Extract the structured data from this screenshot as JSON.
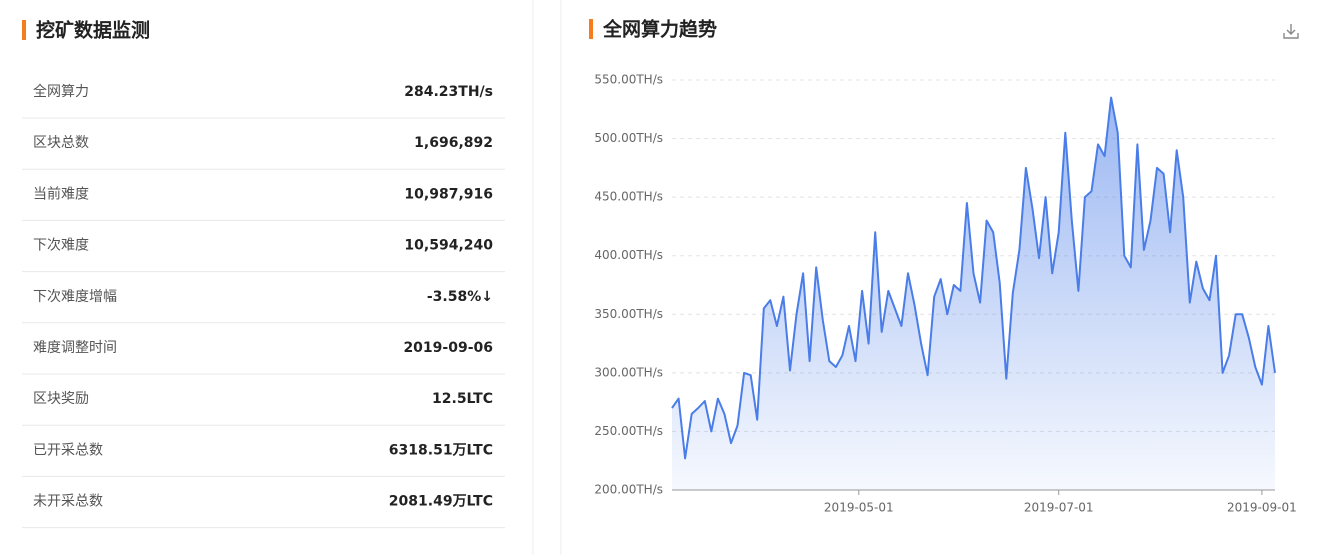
{
  "stats": {
    "title": "挖矿数据监测",
    "rows": [
      [
        "全网算力",
        "284.23TH/s"
      ],
      [
        "区块总数",
        "1,696,892"
      ],
      [
        "当前难度",
        "10,987,916"
      ],
      [
        "下次难度",
        "10,594,240"
      ],
      [
        "下次难度增幅",
        "-3.58%↓"
      ],
      [
        "难度调整时间",
        "2019-09-06"
      ],
      [
        "区块奖励",
        "12.5LTC"
      ],
      [
        "已开采总数",
        "6318.51万LTC"
      ],
      [
        "未开采总数",
        "2081.49万LTC"
      ]
    ]
  },
  "chart_data": {
    "type": "area",
    "title": "全网算力趋势",
    "x": [
      "2019-03-05",
      "2019-03-07",
      "2019-03-09",
      "2019-03-11",
      "2019-03-13",
      "2019-03-15",
      "2019-03-17",
      "2019-03-19",
      "2019-03-21",
      "2019-03-23",
      "2019-03-25",
      "2019-03-27",
      "2019-03-29",
      "2019-03-31",
      "2019-04-02",
      "2019-04-04",
      "2019-04-06",
      "2019-04-08",
      "2019-04-10",
      "2019-04-12",
      "2019-04-14",
      "2019-04-16",
      "2019-04-18",
      "2019-04-20",
      "2019-04-22",
      "2019-04-24",
      "2019-04-26",
      "2019-04-28",
      "2019-04-30",
      "2019-05-02",
      "2019-05-04",
      "2019-05-06",
      "2019-05-08",
      "2019-05-10",
      "2019-05-12",
      "2019-05-14",
      "2019-05-16",
      "2019-05-18",
      "2019-05-20",
      "2019-05-22",
      "2019-05-24",
      "2019-05-26",
      "2019-05-28",
      "2019-05-30",
      "2019-06-01",
      "2019-06-03",
      "2019-06-05",
      "2019-06-07",
      "2019-06-09",
      "2019-06-11",
      "2019-06-13",
      "2019-06-15",
      "2019-06-17",
      "2019-06-19",
      "2019-06-21",
      "2019-06-23",
      "2019-06-25",
      "2019-06-27",
      "2019-06-29",
      "2019-07-01",
      "2019-07-03",
      "2019-07-05",
      "2019-07-07",
      "2019-07-09",
      "2019-07-11",
      "2019-07-13",
      "2019-07-15",
      "2019-07-17",
      "2019-07-19",
      "2019-07-21",
      "2019-07-23",
      "2019-07-25",
      "2019-07-27",
      "2019-07-29",
      "2019-07-31",
      "2019-08-02",
      "2019-08-04",
      "2019-08-06",
      "2019-08-08",
      "2019-08-10",
      "2019-08-12",
      "2019-08-14",
      "2019-08-16",
      "2019-08-18",
      "2019-08-20",
      "2019-08-22",
      "2019-08-24",
      "2019-08-26",
      "2019-08-28",
      "2019-08-30",
      "2019-09-01",
      "2019-09-03",
      "2019-09-05"
    ],
    "series": [
      {
        "color": "#4a7de8",
        "values": [
          270,
          278,
          227,
          265,
          270,
          276,
          250,
          278,
          265,
          240,
          255,
          300,
          298,
          260,
          355,
          362,
          340,
          365,
          302,
          350,
          385,
          310,
          390,
          345,
          310,
          305,
          315,
          340,
          310,
          370,
          325,
          420,
          335,
          370,
          355,
          340,
          385,
          358,
          325,
          298,
          365,
          380,
          350,
          375,
          370,
          445,
          385,
          360,
          430,
          420,
          377,
          295,
          368,
          405,
          475,
          440,
          398,
          450,
          385,
          420,
          505,
          430,
          370,
          450,
          455,
          495,
          485,
          535,
          505,
          400,
          390,
          495,
          405,
          430,
          475,
          470,
          420,
          490,
          450,
          360,
          395,
          372,
          362,
          400,
          300,
          315,
          350,
          350,
          330,
          305,
          290,
          340,
          300
        ]
      }
    ],
    "xlim": [
      "2019-03-05",
      "2019-09-05"
    ],
    "xticks": [
      "2019-05-01",
      "2019-07-01",
      "2019-09-01"
    ],
    "ylim": [
      200,
      550
    ],
    "yticks": [
      {
        "value": 200,
        "label": "200.00TH/s"
      },
      {
        "value": 250,
        "label": "250.00TH/s"
      },
      {
        "value": 300,
        "label": "300.00TH/s"
      },
      {
        "value": 350,
        "label": "350.00TH/s"
      },
      {
        "value": 400,
        "label": "400.00TH/s"
      },
      {
        "value": 450,
        "label": "450.00TH/s"
      },
      {
        "value": 500,
        "label": "500.00TH/s"
      },
      {
        "value": 550,
        "label": "550.00TH/s"
      }
    ],
    "grid": true
  }
}
